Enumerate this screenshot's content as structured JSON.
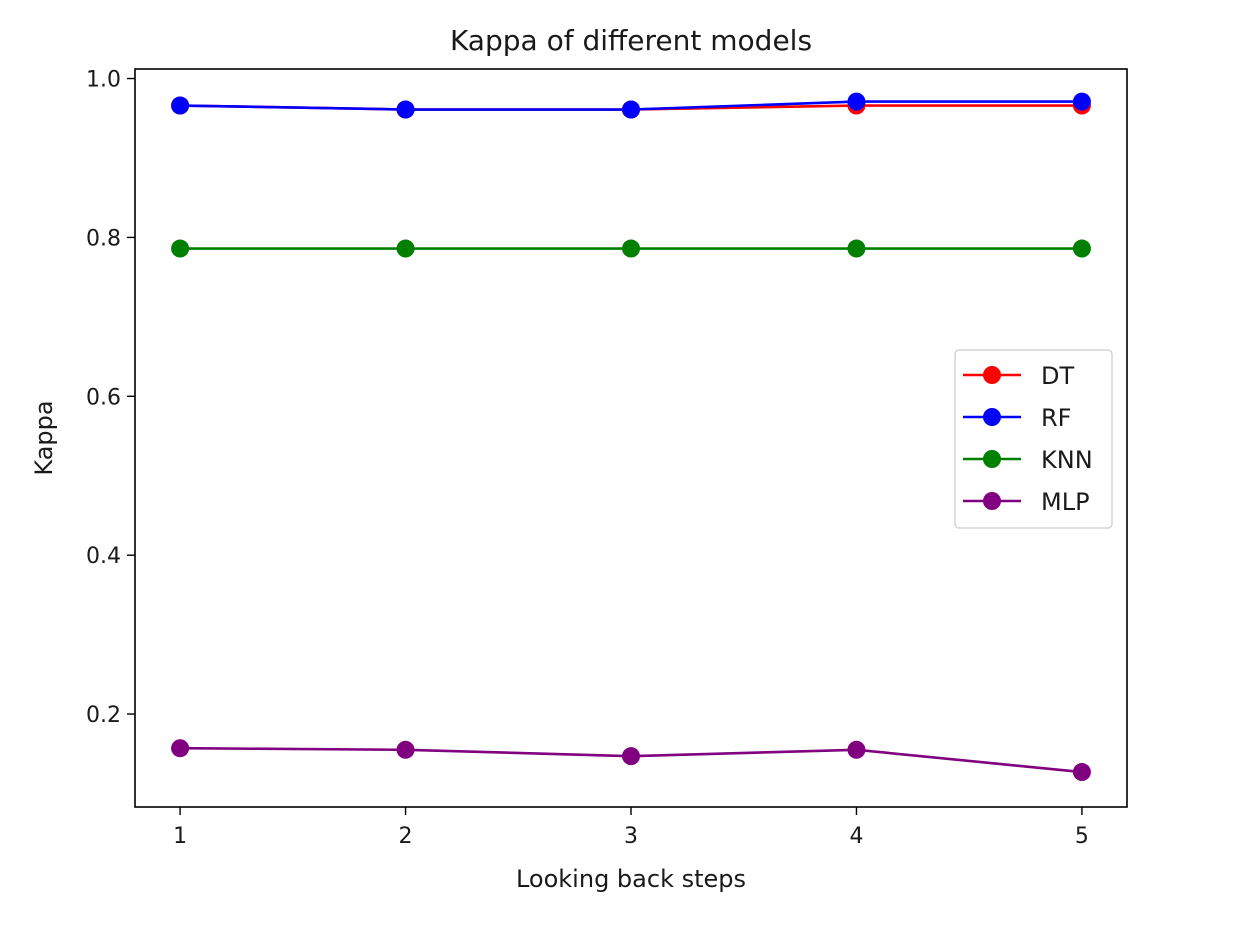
{
  "chart_data": {
    "type": "line",
    "title": "Kappa of different models",
    "xlabel": "Looking back steps",
    "ylabel": "Kappa",
    "x": [
      1,
      2,
      3,
      4,
      5
    ],
    "xlim": [
      0.8,
      5.2
    ],
    "ylim": [
      0.083,
      1.012
    ],
    "xticks": [
      1,
      2,
      3,
      4,
      5
    ],
    "yticks": [
      0.2,
      0.4,
      0.6,
      0.8,
      1.0
    ],
    "xtick_labels": [
      "1",
      "2",
      "3",
      "4",
      "5"
    ],
    "ytick_labels": [
      "0.2",
      "0.4",
      "0.6",
      "0.8",
      "1.0"
    ],
    "grid": false,
    "legend_position": "center-right",
    "series": [
      {
        "name": "DT",
        "color": "#ff0000",
        "values": [
          0.966,
          0.961,
          0.961,
          0.966,
          0.966
        ]
      },
      {
        "name": "RF",
        "color": "#0000ff",
        "values": [
          0.966,
          0.961,
          0.961,
          0.971,
          0.971
        ]
      },
      {
        "name": "KNN",
        "color": "#008000",
        "values": [
          0.786,
          0.786,
          0.786,
          0.786,
          0.786
        ]
      },
      {
        "name": "MLP",
        "color": "#800080",
        "values": [
          0.157,
          0.155,
          0.147,
          0.155,
          0.127
        ]
      }
    ]
  }
}
